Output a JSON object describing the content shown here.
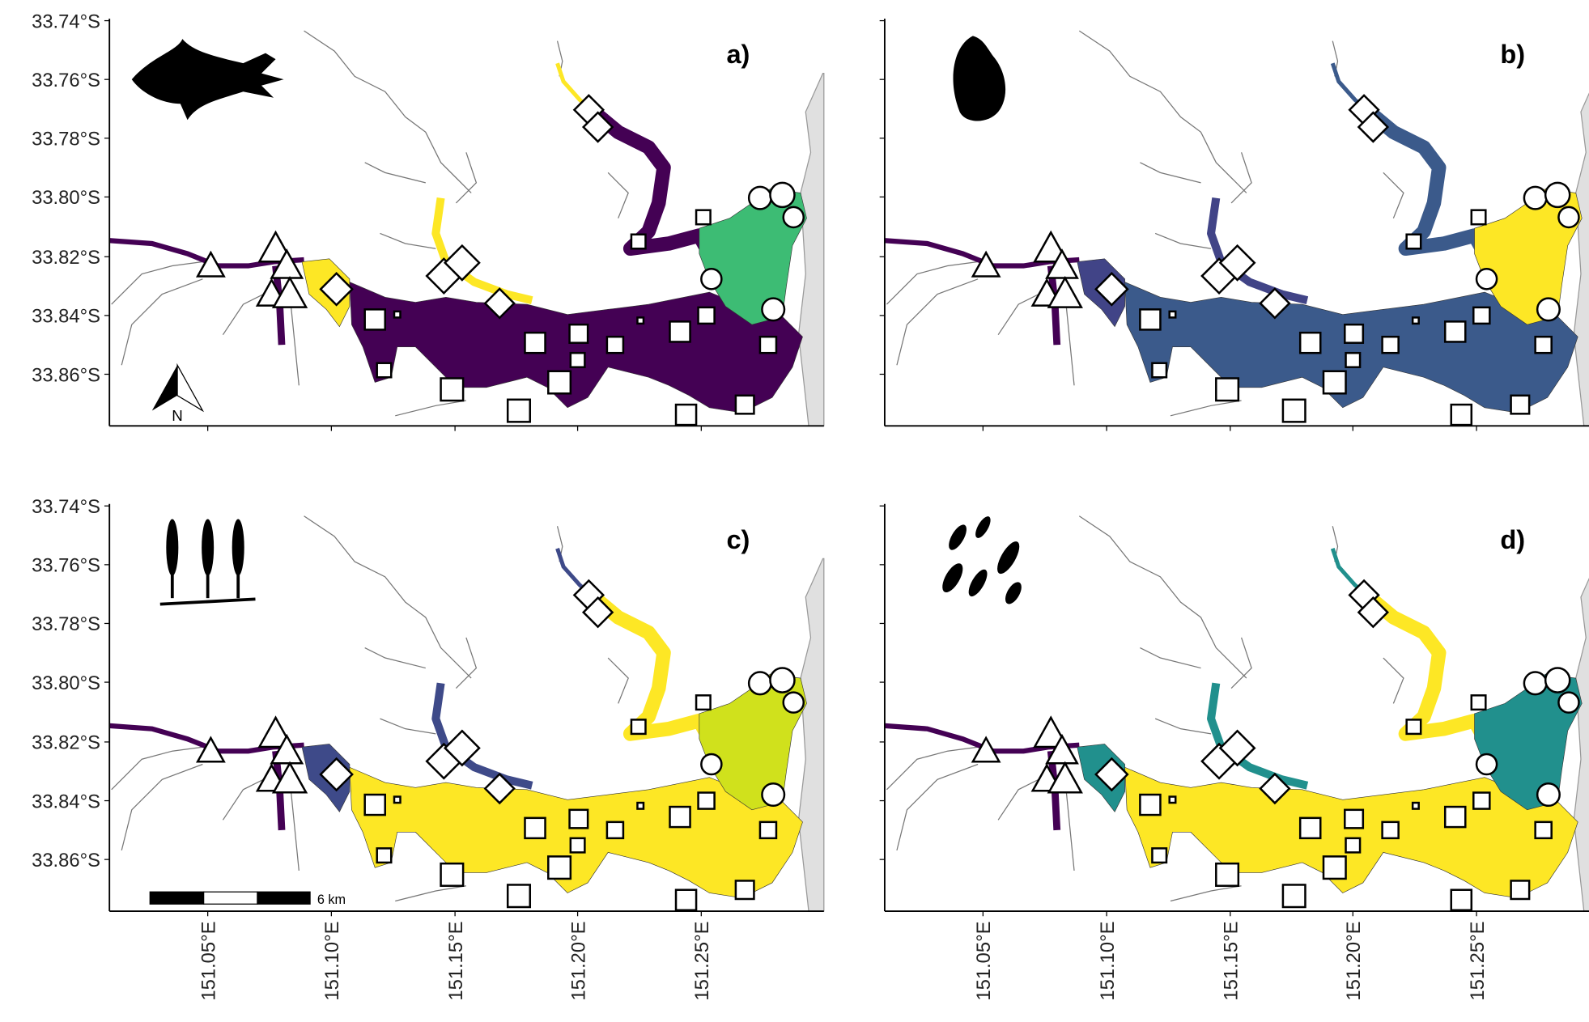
{
  "panels": [
    {
      "label": "a)",
      "colors": {
        "river": "#440154",
        "blob": "#fde725",
        "main": "#440154",
        "midArm": "#fde725",
        "upperArm": "#440154",
        "upperTip": "#fde725",
        "east": "#3dbc74"
      }
    },
    {
      "label": "b)",
      "colors": {
        "river": "#440154",
        "blob": "#414487",
        "main": "#3b5a8b",
        "midArm": "#414487",
        "upperArm": "#3b5a8b",
        "upperTip": "#3b5a8b",
        "east": "#fde725"
      }
    },
    {
      "label": "c)",
      "colors": {
        "river": "#440154",
        "blob": "#3e4a89",
        "main": "#fde725",
        "midArm": "#3e4a89",
        "upperArm": "#fde725",
        "upperTip": "#3e4a89",
        "east": "#d0e11c"
      }
    },
    {
      "label": "d)",
      "colors": {
        "river": "#440154",
        "blob": "#21908d",
        "main": "#fde725",
        "midArm": "#21908d",
        "upperArm": "#fde725",
        "upperTip": "#21908d",
        "east": "#21908d"
      }
    }
  ],
  "y_axis": {
    "ticks": [
      "33.74°S",
      "33.76°S",
      "33.78°S",
      "33.80°S",
      "33.82°S",
      "33.84°S",
      "33.86°S"
    ]
  },
  "x_axis": {
    "ticks": [
      "151.05°E",
      "151.10°E",
      "151.15°E",
      "151.20°E",
      "151.25°E"
    ]
  },
  "north_arrow": "N",
  "scale_bar": "6 km"
}
